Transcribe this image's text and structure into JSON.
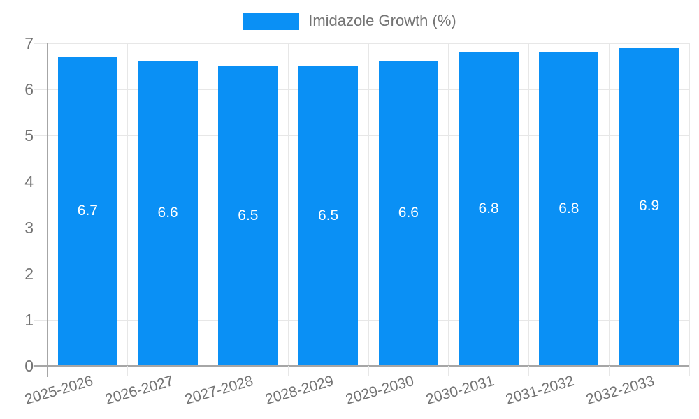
{
  "chart_data": {
    "type": "bar",
    "title": "",
    "legend": {
      "label": "Imidazole Growth (%)",
      "position": "top"
    },
    "categories": [
      "2025-2026",
      "2026-2027",
      "2027-2028",
      "2028-2029",
      "2029-2030",
      "2030-2031",
      "2031-2032",
      "2032-2033"
    ],
    "values": [
      6.7,
      6.6,
      6.5,
      6.5,
      6.6,
      6.8,
      6.8,
      6.9
    ],
    "value_labels": [
      "6.7",
      "6.6",
      "6.5",
      "6.5",
      "6.6",
      "6.8",
      "6.8",
      "6.9"
    ],
    "xlabel": "",
    "ylabel": "",
    "ylim": [
      0,
      7
    ],
    "yticks": [
      "0",
      "1",
      "2",
      "3",
      "4",
      "5",
      "6",
      "7"
    ],
    "grid": true,
    "legend_position": "top-center",
    "colors": {
      "bar": "#0a90f5",
      "grid": "#e7e7e7",
      "axis": "#a6a6a6",
      "tick_text": "#737373",
      "value_text": "#ffffff",
      "background": "#ffffff"
    }
  }
}
